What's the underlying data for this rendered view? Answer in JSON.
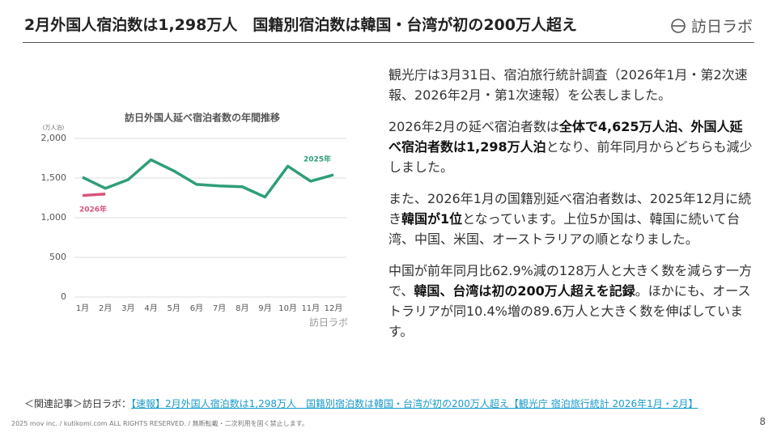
{
  "header": {
    "title": "2月外国人宿泊数は1,298万人　国籍別宿泊数は韓国・台湾が初の200万人超え",
    "logo": "訪日ラボ"
  },
  "chart": {
    "type": "line",
    "title": "訪日外国人延べ宿泊者数の年間推移",
    "y_unit": "(万人泊)",
    "watermark": "訪日ラボ",
    "categories": [
      "1月",
      "2月",
      "3月",
      "4月",
      "5月",
      "6月",
      "7月",
      "8月",
      "9月",
      "10月",
      "11月",
      "12月"
    ],
    "series": [
      {
        "name": "2025年",
        "color": "#2e9e7a",
        "values": [
          1510,
          1370,
          1480,
          1730,
          1590,
          1420,
          1400,
          1390,
          1260,
          1650,
          1460,
          1540
        ]
      },
      {
        "name": "2026年",
        "color": "#d9537a",
        "values": [
          1280,
          1298,
          null,
          null,
          null,
          null,
          null,
          null,
          null,
          null,
          null,
          null
        ]
      }
    ],
    "ylim": [
      0,
      2000
    ],
    "yticks": [
      0,
      500,
      {
        "value": 1000,
        "label": "1,000"
      },
      {
        "value": 1500,
        "label": "1,500"
      },
      {
        "value": 2000,
        "label": "2,000"
      }
    ],
    "grid": true
  },
  "body": {
    "paragraphs": [
      [
        {
          "text": "観光庁は3月31日、宿泊旅行統計調査（2026年1月・第2次速報、2026年2月・第1次速報）を公表しました。",
          "bold": false
        }
      ],
      [
        {
          "text": "2026年2月の延べ宿泊者数は",
          "bold": false
        },
        {
          "text": "全体で4,625万人泊、外国人延べ宿泊者数は1,298万人泊",
          "bold": true
        },
        {
          "text": "となり、前年同月からどちらも減少しました。",
          "bold": false
        }
      ],
      [
        {
          "text": "また、2026年1月の国籍別延べ宿泊者数は、2025年12月に続き",
          "bold": false
        },
        {
          "text": "韓国が1位",
          "bold": true
        },
        {
          "text": "となっています。上位5か国は、韓国に続いて台湾、中国、米国、オーストラリアの順となりました。",
          "bold": false
        }
      ],
      [
        {
          "text": "中国が前年同月比62.9%減の128万人と大きく数を減らす一方で、",
          "bold": false
        },
        {
          "text": "韓国、台湾は初の200万人超えを記録",
          "bold": true
        },
        {
          "text": "。ほかにも、オーストラリアが同10.4%増の89.6万人と大きく数を伸ばしています。",
          "bold": false
        }
      ]
    ]
  },
  "related": {
    "prefix": "＜関連記事＞訪日ラボ：",
    "link": "【速報】2月外国人宿泊数は1,298万人　国籍別宿泊数は韓国・台湾が初の200万人超え【観光庁 宿泊旅行統計 2026年1月・2月】"
  },
  "footer": {
    "copyright": "2025 mov inc. / kutikomi.com ALL RIGHTS RESERVED. / 無断転載・二次利用を固く禁止します。",
    "page": "8"
  }
}
